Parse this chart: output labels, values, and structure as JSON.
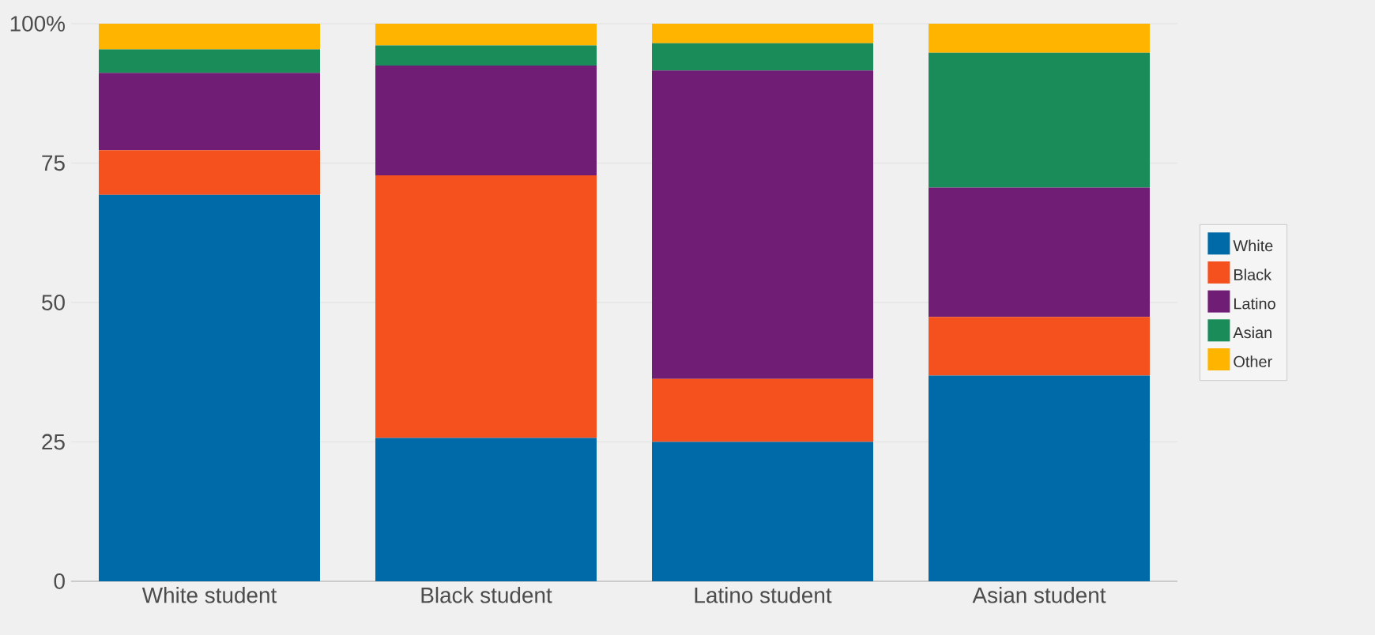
{
  "chart_data": {
    "type": "bar",
    "stacked": true,
    "categories": [
      "White student",
      "Black student",
      "Latino student",
      "Asian student"
    ],
    "series": [
      {
        "name": "White",
        "color": "#0069a8",
        "values": [
          69.3,
          25.7,
          25.0,
          36.9
        ]
      },
      {
        "name": "Black",
        "color": "#f5511e",
        "values": [
          8.0,
          47.1,
          11.3,
          10.5
        ]
      },
      {
        "name": "Latino",
        "color": "#6f1d75",
        "values": [
          13.9,
          19.7,
          55.3,
          23.2
        ]
      },
      {
        "name": "Asian",
        "color": "#198c5a",
        "values": [
          4.2,
          3.6,
          4.9,
          24.2
        ]
      },
      {
        "name": "Other",
        "color": "#ffb500",
        "values": [
          4.6,
          3.9,
          3.5,
          5.2
        ]
      }
    ],
    "ylim": [
      0,
      100
    ],
    "yticks": [
      0,
      25,
      50,
      75,
      {
        "value": 100,
        "label": "100%"
      }
    ],
    "grid": "y",
    "legend": "right"
  }
}
